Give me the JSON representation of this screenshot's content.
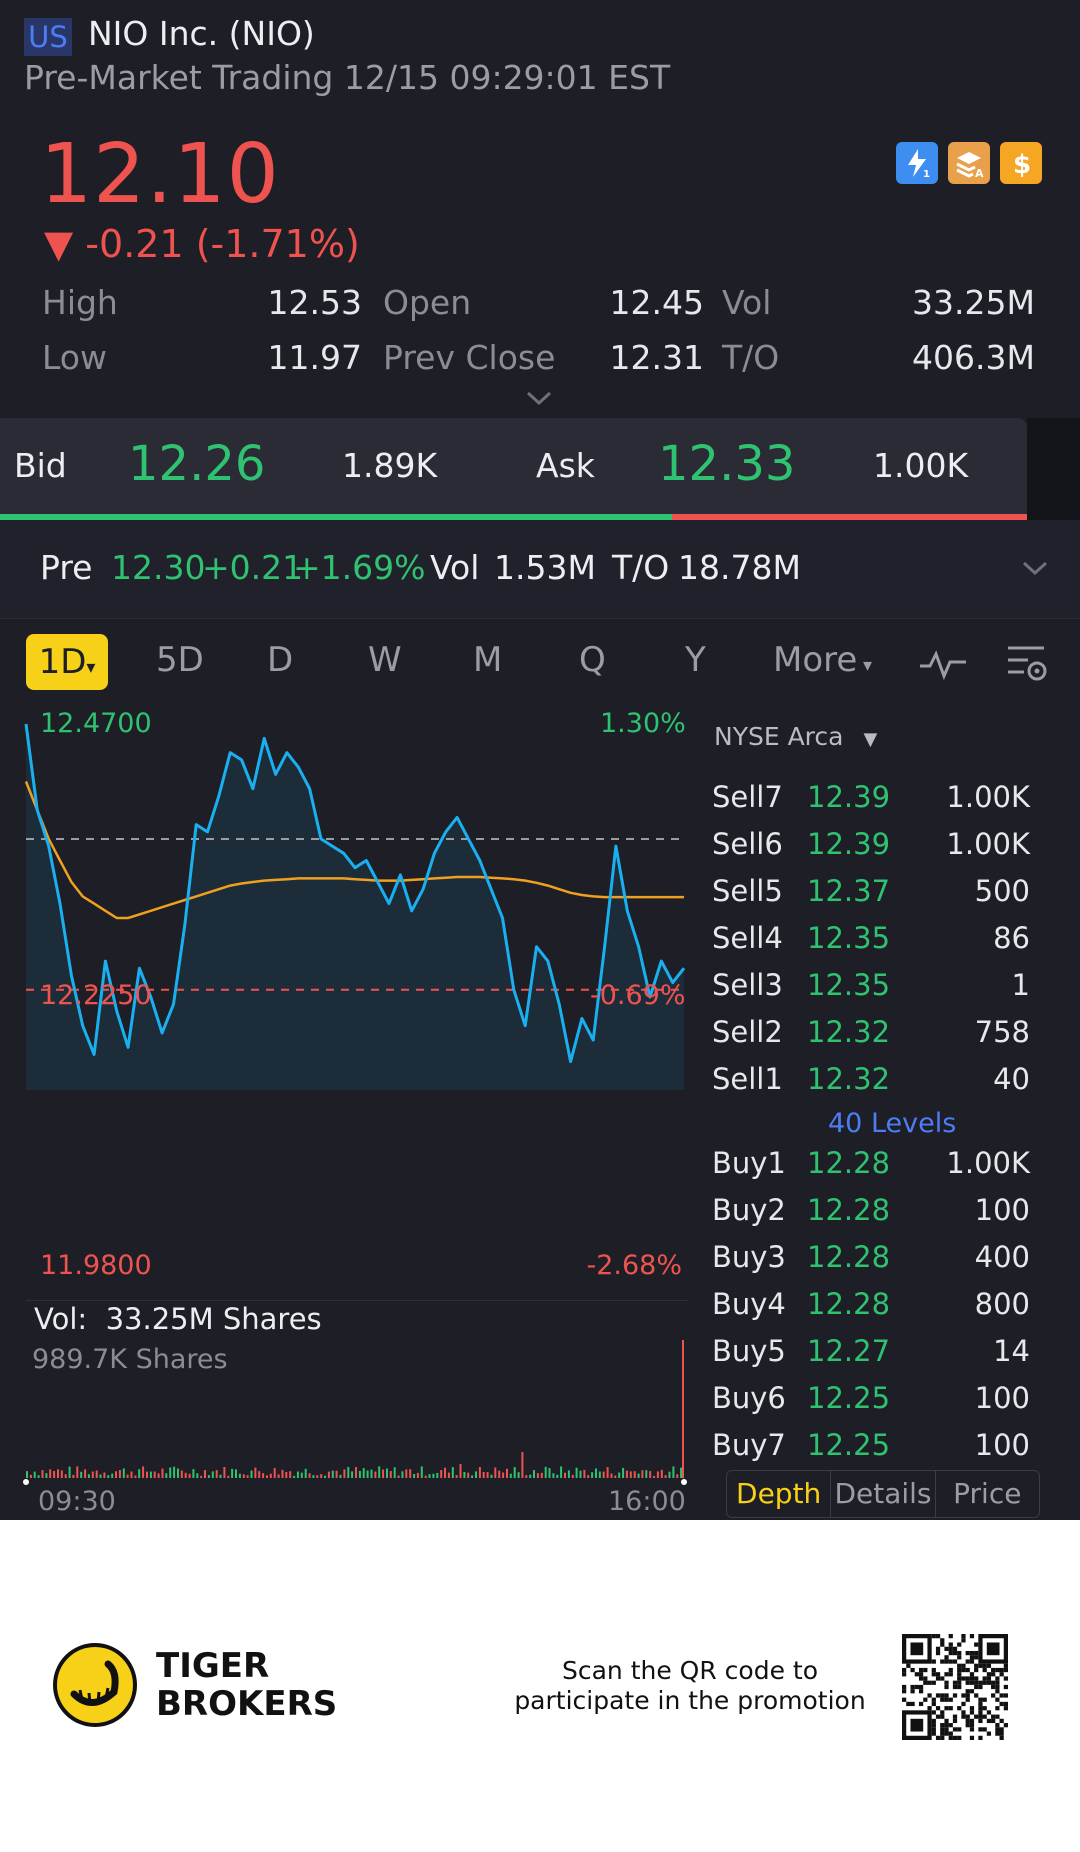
{
  "header": {
    "market": "US",
    "title": "NIO Inc. (NIO)",
    "session": "Pre-Market Trading 12/15 09:29:01 EST",
    "price": "12.10",
    "change": "▼ -0.21 (-1.71%)",
    "badge_icons": [
      "lightning-level1-icon",
      "stack-a-icon",
      "dollar-icon"
    ]
  },
  "stats": {
    "high_label": "High",
    "high": "12.53",
    "low_label": "Low",
    "low": "11.97",
    "open_label": "Open",
    "open": "12.45",
    "prev_close_label": "Prev Close",
    "prev_close": "12.31",
    "vol_label": "Vol",
    "vol": "33.25M",
    "to_label": "T/O",
    "to": "406.3M"
  },
  "bidask": {
    "bid_label": "Bid",
    "bid": "12.26",
    "bid_size": "1.89K",
    "ask_label": "Ask",
    "ask": "12.33",
    "ask_size": "1.00K",
    "bid_fraction": 0.654
  },
  "pre": {
    "label": "Pre",
    "price": "12.30",
    "change": "+0.21",
    "pct": "+1.69%",
    "vol_label": "Vol",
    "vol": "1.53M",
    "to_label": "T/O",
    "to": "18.78M"
  },
  "tabs": {
    "active": "1D",
    "items": [
      "5D",
      "D",
      "W",
      "M",
      "Q",
      "Y"
    ],
    "more": "More"
  },
  "chart_labels": {
    "top_price": "12.4700",
    "top_pct": "1.30%",
    "mid_price": "12.2250",
    "mid_pct": "-0.69%",
    "bottom_price": "11.9800",
    "bottom_pct": "-2.68%",
    "vol_label": "Vol:",
    "vol_value": "33.25M Shares",
    "vol_max": "989.7K Shares",
    "time_start": "09:30",
    "time_end": "16:00"
  },
  "chart_data": {
    "type": "line",
    "x_range": [
      "09:30",
      "16:00"
    ],
    "ylim": [
      11.98,
      12.47
    ],
    "reference_lines": {
      "prev_close": 12.31,
      "current": 12.1
    },
    "series": [
      {
        "values": [
          12.47,
          12.35,
          12.3,
          12.22,
          12.12,
          12.05,
          12.01,
          12.14,
          12.07,
          12.02,
          12.13,
          12.09,
          12.04,
          12.08,
          12.19,
          12.33,
          12.32,
          12.37,
          12.43,
          12.42,
          12.38,
          12.45,
          12.4,
          12.43,
          12.41,
          12.38,
          12.31,
          12.3,
          12.29,
          12.27,
          12.28,
          12.25,
          12.22,
          12.26,
          12.21,
          12.24,
          12.29,
          12.32,
          12.34,
          12.31,
          12.28,
          12.24,
          12.2,
          12.1,
          12.05,
          12.16,
          12.14,
          12.08,
          12.0,
          12.06,
          12.03,
          12.16,
          12.3,
          12.21,
          12.16,
          12.09,
          12.14,
          12.11,
          12.13
        ]
      },
      {
        "values": [
          12.39,
          12.35,
          12.31,
          12.28,
          12.25,
          12.23,
          12.22,
          12.21,
          12.2,
          12.2,
          12.205,
          12.21,
          12.215,
          12.22,
          12.225,
          12.23,
          12.235,
          12.24,
          12.245,
          12.248,
          12.25,
          12.252,
          12.253,
          12.254,
          12.255,
          12.255,
          12.255,
          12.255,
          12.255,
          12.254,
          12.253,
          12.252,
          12.252,
          12.252,
          12.253,
          12.254,
          12.255,
          12.256,
          12.257,
          12.257,
          12.257,
          12.256,
          12.255,
          12.254,
          12.252,
          12.249,
          12.245,
          12.24,
          12.235,
          12.232,
          12.23,
          12.229,
          12.229,
          12.229,
          12.229,
          12.229,
          12.229,
          12.229,
          12.229
        ]
      }
    ]
  },
  "orderbook": {
    "exchange": "NYSE Arca",
    "sells": [
      {
        "name": "Sell7",
        "price": "12.39",
        "size": "1.00K"
      },
      {
        "name": "Sell6",
        "price": "12.39",
        "size": "1.00K"
      },
      {
        "name": "Sell5",
        "price": "12.37",
        "size": "500"
      },
      {
        "name": "Sell4",
        "price": "12.35",
        "size": "86"
      },
      {
        "name": "Sell3",
        "price": "12.35",
        "size": "1"
      },
      {
        "name": "Sell2",
        "price": "12.32",
        "size": "758"
      },
      {
        "name": "Sell1",
        "price": "12.32",
        "size": "40"
      }
    ],
    "levels_link": "40 Levels",
    "buys": [
      {
        "name": "Buy1",
        "price": "12.28",
        "size": "1.00K"
      },
      {
        "name": "Buy2",
        "price": "12.28",
        "size": "100"
      },
      {
        "name": "Buy3",
        "price": "12.28",
        "size": "400"
      },
      {
        "name": "Buy4",
        "price": "12.28",
        "size": "800"
      },
      {
        "name": "Buy5",
        "price": "12.27",
        "size": "14"
      },
      {
        "name": "Buy6",
        "price": "12.25",
        "size": "100"
      },
      {
        "name": "Buy7",
        "price": "12.25",
        "size": "100"
      }
    ],
    "tabs": [
      "Depth",
      "Details",
      "Price"
    ]
  },
  "footer": {
    "brand_line1": "TIGER",
    "brand_line2": "BROKERS",
    "promo_line1": "Scan the QR code to",
    "promo_line2": "participate in the promotion"
  },
  "colors": {
    "up": "#2fc270",
    "down": "#ef5350",
    "accent": "#f7d117",
    "line": "#1ab0f0",
    "avg": "#f0a020",
    "bg": "#1d1e26"
  }
}
